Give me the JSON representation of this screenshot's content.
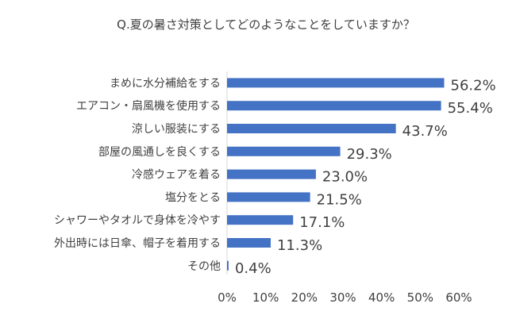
{
  "chart_data": {
    "type": "bar",
    "orientation": "horizontal",
    "title": "Q.夏の暑さ対策としてどのようなことをしていますか？",
    "categories": [
      "まめに水分補給をする",
      "エアコン・扇風機を使用する",
      "涼しい服装にする",
      "部屋の風通しを良くする",
      "冷感ウェアを着る",
      "塩分をとる",
      "シャワーやタオルで身体を冷やす",
      "外出時には日傘、帽子を着用する",
      "その他"
    ],
    "values": [
      56.2,
      55.4,
      43.7,
      29.3,
      23.0,
      21.5,
      17.1,
      11.3,
      0.4
    ],
    "value_labels": [
      "56.2%",
      "55.4%",
      "43.7%",
      "29.3%",
      "23.0%",
      "21.5%",
      "17.1%",
      "11.3%",
      "0.4%"
    ],
    "xlim": [
      0,
      60
    ],
    "x_ticks": [
      "0%",
      "10%",
      "20%",
      "30%",
      "40%",
      "50%",
      "60%"
    ],
    "grid": false,
    "bar_color": "#4472C4"
  }
}
